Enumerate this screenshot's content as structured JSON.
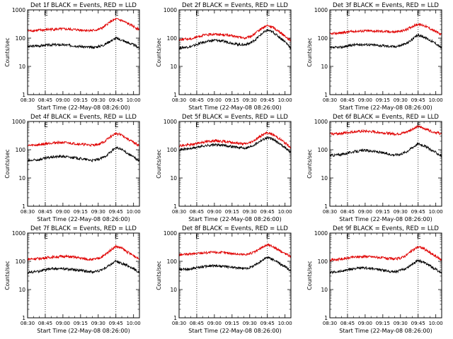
{
  "chart_data": [
    {
      "type": "line",
      "title": "Det 1f BLACK = Events, RED = LLD",
      "xlabel": "Start Time (22-May-08 08:26:00)",
      "ylabel": "Counts/sec",
      "y_scale": "log",
      "ylim": [
        1,
        1000
      ],
      "yticks": [
        "1",
        "10",
        "100",
        "1000"
      ],
      "xticks": [
        "08:30",
        "08:45",
        "09:00",
        "09:15",
        "09:30",
        "09:45",
        "10:00"
      ],
      "x_minutes": [
        0,
        15,
        30,
        45,
        60,
        75,
        90
      ],
      "xlim_minutes": [
        0,
        95
      ],
      "vlines_minutes": [
        15,
        75
      ],
      "event_marker": "E",
      "series": [
        {
          "color": "#000000",
          "x_minutes": [
            0,
            10,
            20,
            30,
            40,
            50,
            55,
            60,
            65,
            70,
            75,
            80,
            85,
            90,
            95
          ],
          "values": [
            50,
            54,
            58,
            58,
            54,
            48,
            47,
            50,
            58,
            78,
            100,
            85,
            70,
            58,
            45
          ]
        },
        {
          "color": "#e00000",
          "x_minutes": [
            0,
            10,
            20,
            30,
            40,
            50,
            55,
            60,
            65,
            70,
            75,
            80,
            85,
            90,
            95
          ],
          "values": [
            180,
            190,
            205,
            210,
            200,
            190,
            185,
            200,
            250,
            380,
            470,
            420,
            330,
            260,
            200
          ]
        }
      ]
    },
    {
      "type": "line",
      "title": "Det 2f BLACK = Events, RED = LLD",
      "xlabel": "Start Time (22-May-08 08:26:00)",
      "ylabel": "Counts/sec",
      "y_scale": "log",
      "ylim": [
        1,
        1000
      ],
      "yticks": [
        "1",
        "10",
        "100",
        "1000"
      ],
      "xticks": [
        "08:30",
        "08:45",
        "09:00",
        "09:15",
        "09:30",
        "09:45",
        "10:00"
      ],
      "x_minutes": [
        0,
        15,
        30,
        45,
        60,
        75,
        90
      ],
      "xlim_minutes": [
        0,
        95
      ],
      "vlines_minutes": [
        15,
        75
      ],
      "event_marker": "E",
      "series": [
        {
          "color": "#000000",
          "x_minutes": [
            0,
            10,
            20,
            30,
            40,
            50,
            55,
            60,
            65,
            70,
            75,
            80,
            85,
            90,
            95
          ],
          "values": [
            45,
            50,
            70,
            85,
            75,
            60,
            58,
            65,
            90,
            140,
            190,
            160,
            110,
            75,
            45
          ]
        },
        {
          "color": "#e00000",
          "x_minutes": [
            0,
            10,
            20,
            30,
            40,
            50,
            55,
            60,
            65,
            70,
            75,
            80,
            85,
            90,
            95
          ],
          "values": [
            90,
            95,
            125,
            140,
            130,
            110,
            100,
            110,
            150,
            220,
            280,
            240,
            170,
            120,
            80
          ]
        }
      ]
    },
    {
      "type": "line",
      "title": "Det 3f BLACK = Events, RED = LLD",
      "xlabel": "Start Time (22-May-08 08:26:00)",
      "ylabel": "Counts/sec",
      "y_scale": "log",
      "ylim": [
        1,
        1000
      ],
      "yticks": [
        "1",
        "10",
        "100",
        "1000"
      ],
      "xticks": [
        "08:30",
        "08:45",
        "09:00",
        "09:15",
        "09:30",
        "09:45",
        "10:00"
      ],
      "x_minutes": [
        0,
        15,
        30,
        45,
        60,
        75,
        90
      ],
      "xlim_minutes": [
        0,
        95
      ],
      "vlines_minutes": [
        15,
        75
      ],
      "event_marker": "E",
      "series": [
        {
          "color": "#000000",
          "x_minutes": [
            0,
            10,
            20,
            30,
            40,
            50,
            55,
            60,
            65,
            70,
            75,
            80,
            85,
            90,
            95
          ],
          "values": [
            45,
            48,
            58,
            60,
            56,
            52,
            50,
            55,
            65,
            90,
            130,
            110,
            85,
            65,
            45
          ]
        },
        {
          "color": "#e00000",
          "x_minutes": [
            0,
            10,
            20,
            30,
            40,
            50,
            55,
            60,
            65,
            70,
            75,
            80,
            85,
            90,
            95
          ],
          "values": [
            140,
            155,
            175,
            180,
            178,
            170,
            165,
            175,
            200,
            260,
            310,
            280,
            220,
            170,
            130
          ]
        }
      ]
    },
    {
      "type": "line",
      "title": "Det 4f BLACK = Events, RED = LLD",
      "xlabel": "Start Time (22-May-08 08:26:00)",
      "ylabel": "Counts/sec",
      "y_scale": "log",
      "ylim": [
        1,
        1000
      ],
      "yticks": [
        "1",
        "10",
        "100",
        "1000"
      ],
      "xticks": [
        "08:30",
        "08:45",
        "09:00",
        "09:15",
        "09:30",
        "09:45",
        "10:00"
      ],
      "x_minutes": [
        0,
        15,
        30,
        45,
        60,
        75,
        90
      ],
      "xlim_minutes": [
        0,
        95
      ],
      "vlines_minutes": [
        15,
        75
      ],
      "event_marker": "E",
      "series": [
        {
          "color": "#000000",
          "x_minutes": [
            0,
            10,
            20,
            30,
            40,
            50,
            55,
            60,
            65,
            70,
            75,
            80,
            85,
            90,
            95
          ],
          "values": [
            40,
            45,
            55,
            58,
            52,
            45,
            42,
            45,
            55,
            80,
            120,
            100,
            75,
            55,
            40
          ]
        },
        {
          "color": "#e00000",
          "x_minutes": [
            0,
            10,
            20,
            30,
            40,
            50,
            55,
            60,
            65,
            70,
            75,
            80,
            85,
            90,
            95
          ],
          "values": [
            140,
            150,
            175,
            180,
            165,
            150,
            145,
            155,
            190,
            280,
            380,
            330,
            240,
            180,
            140
          ]
        }
      ]
    },
    {
      "type": "line",
      "title": "Det 5f BLACK = Events, RED = LLD",
      "xlabel": "Start Time (22-May-08 08:26:00)",
      "ylabel": "Counts/sec",
      "y_scale": "log",
      "ylim": [
        1,
        1000
      ],
      "yticks": [
        "1",
        "10",
        "100",
        "1000"
      ],
      "xticks": [
        "08:30",
        "08:45",
        "09:00",
        "09:15",
        "09:30",
        "09:45",
        "10:00"
      ],
      "x_minutes": [
        0,
        15,
        30,
        45,
        60,
        75,
        90
      ],
      "xlim_minutes": [
        0,
        95
      ],
      "vlines_minutes": [
        15,
        75
      ],
      "event_marker": "E",
      "series": [
        {
          "color": "#000000",
          "x_minutes": [
            0,
            10,
            20,
            30,
            40,
            50,
            55,
            60,
            65,
            70,
            75,
            80,
            85,
            90,
            95
          ],
          "values": [
            100,
            110,
            135,
            150,
            140,
            120,
            115,
            125,
            160,
            220,
            270,
            230,
            170,
            120,
            80
          ]
        },
        {
          "color": "#e00000",
          "x_minutes": [
            0,
            10,
            20,
            30,
            40,
            50,
            55,
            60,
            65,
            70,
            75,
            80,
            85,
            90,
            95
          ],
          "values": [
            140,
            150,
            185,
            210,
            195,
            170,
            160,
            175,
            230,
            320,
            400,
            340,
            250,
            175,
            120
          ]
        }
      ]
    },
    {
      "type": "line",
      "title": "Det 6f BLACK = Events, RED = LLD",
      "xlabel": "Start Time (22-May-08 08:26:00)",
      "ylabel": "Counts/sec",
      "y_scale": "log",
      "ylim": [
        1,
        1000
      ],
      "yticks": [
        "1",
        "10",
        "100",
        "1000"
      ],
      "xticks": [
        "08:30",
        "08:45",
        "09:00",
        "09:15",
        "09:30",
        "09:45",
        "10:00"
      ],
      "x_minutes": [
        0,
        15,
        30,
        45,
        60,
        75,
        90
      ],
      "xlim_minutes": [
        0,
        95
      ],
      "vlines_minutes": [
        15,
        75
      ],
      "event_marker": "E",
      "series": [
        {
          "color": "#000000",
          "x_minutes": [
            0,
            10,
            20,
            30,
            40,
            50,
            55,
            60,
            65,
            70,
            75,
            80,
            85,
            90,
            95
          ],
          "values": [
            62,
            68,
            85,
            95,
            85,
            70,
            66,
            70,
            85,
            120,
            165,
            140,
            105,
            80,
            60
          ]
        },
        {
          "color": "#e00000",
          "x_minutes": [
            0,
            10,
            20,
            30,
            40,
            50,
            55,
            60,
            65,
            70,
            75,
            80,
            85,
            90,
            95
          ],
          "values": [
            360,
            380,
            430,
            450,
            420,
            380,
            360,
            370,
            420,
            540,
            650,
            580,
            470,
            410,
            360
          ]
        }
      ]
    },
    {
      "type": "line",
      "title": "Det 7f BLACK = Events, RED = LLD",
      "xlabel": "Start Time (22-May-08 08:26:00)",
      "ylabel": "Counts/sec",
      "y_scale": "log",
      "ylim": [
        1,
        1000
      ],
      "yticks": [
        "1",
        "10",
        "100",
        "1000"
      ],
      "xticks": [
        "08:30",
        "08:45",
        "09:00",
        "09:15",
        "09:30",
        "09:45",
        "10:00"
      ],
      "x_minutes": [
        0,
        15,
        30,
        45,
        60,
        75,
        90
      ],
      "xlim_minutes": [
        0,
        95
      ],
      "vlines_minutes": [
        15,
        75
      ],
      "event_marker": "E",
      "series": [
        {
          "color": "#000000",
          "x_minutes": [
            0,
            10,
            20,
            30,
            40,
            50,
            55,
            60,
            65,
            70,
            75,
            80,
            85,
            90,
            95
          ],
          "values": [
            40,
            45,
            55,
            55,
            50,
            45,
            42,
            45,
            55,
            75,
            100,
            85,
            70,
            55,
            40
          ]
        },
        {
          "color": "#e00000",
          "x_minutes": [
            0,
            10,
            20,
            30,
            40,
            50,
            55,
            60,
            65,
            70,
            75,
            80,
            85,
            90,
            95
          ],
          "values": [
            120,
            125,
            140,
            150,
            140,
            120,
            115,
            125,
            160,
            240,
            340,
            290,
            210,
            160,
            120
          ]
        }
      ]
    },
    {
      "type": "line",
      "title": "Det 8f BLACK = Events, RED = LLD",
      "xlabel": "Start Time (22-May-08 08:26:00)",
      "ylabel": "Counts/sec",
      "y_scale": "log",
      "ylim": [
        1,
        1000
      ],
      "yticks": [
        "1",
        "10",
        "100",
        "1000"
      ],
      "xticks": [
        "08:30",
        "08:45",
        "09:00",
        "09:15",
        "09:30",
        "09:45",
        "10:00"
      ],
      "x_minutes": [
        0,
        15,
        30,
        45,
        60,
        75,
        90
      ],
      "xlim_minutes": [
        0,
        95
      ],
      "vlines_minutes": [
        15,
        75
      ],
      "event_marker": "E",
      "series": [
        {
          "color": "#000000",
          "x_minutes": [
            0,
            10,
            20,
            30,
            40,
            50,
            55,
            60,
            65,
            70,
            75,
            80,
            85,
            90,
            95
          ],
          "values": [
            50,
            55,
            65,
            70,
            65,
            58,
            55,
            60,
            75,
            105,
            140,
            115,
            85,
            65,
            45
          ]
        },
        {
          "color": "#e00000",
          "x_minutes": [
            0,
            10,
            20,
            30,
            40,
            50,
            55,
            60,
            65,
            70,
            75,
            80,
            85,
            90,
            95
          ],
          "values": [
            170,
            180,
            200,
            210,
            200,
            180,
            175,
            185,
            220,
            300,
            390,
            330,
            240,
            190,
            150
          ]
        }
      ]
    },
    {
      "type": "line",
      "title": "Det 9f BLACK = Events, RED = LLD",
      "xlabel": "Start Time (22-May-08 08:26:00)",
      "ylabel": "Counts/sec",
      "y_scale": "log",
      "ylim": [
        1,
        1000
      ],
      "yticks": [
        "1",
        "10",
        "100",
        "1000"
      ],
      "xticks": [
        "08:30",
        "08:45",
        "09:00",
        "09:15",
        "09:30",
        "09:45",
        "10:00"
      ],
      "x_minutes": [
        0,
        15,
        30,
        45,
        60,
        75,
        90
      ],
      "xlim_minutes": [
        0,
        95
      ],
      "vlines_minutes": [
        15,
        75
      ],
      "event_marker": "E",
      "series": [
        {
          "color": "#000000",
          "x_minutes": [
            0,
            10,
            20,
            30,
            40,
            50,
            55,
            60,
            65,
            70,
            75,
            80,
            85,
            90,
            95
          ],
          "values": [
            40,
            45,
            55,
            58,
            52,
            45,
            43,
            47,
            58,
            80,
            110,
            90,
            70,
            52,
            38
          ]
        },
        {
          "color": "#e00000",
          "x_minutes": [
            0,
            10,
            20,
            30,
            40,
            50,
            55,
            60,
            65,
            70,
            75,
            80,
            85,
            90,
            95
          ],
          "values": [
            110,
            120,
            140,
            150,
            140,
            125,
            120,
            130,
            165,
            240,
            330,
            280,
            200,
            150,
            110
          ]
        }
      ]
    }
  ]
}
